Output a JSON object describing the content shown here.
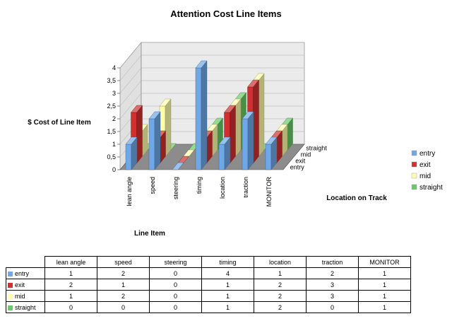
{
  "chart_data": {
    "type": "bar",
    "title": "Attention Cost Line Items",
    "xlabel": "Line Item",
    "ylabel": "$ Cost of Line Item",
    "zlabel": "Location on Track",
    "categories": [
      "lean angle",
      "speed",
      "steering",
      "timing",
      "location",
      "traction",
      "MONITOR"
    ],
    "y_ticks": [
      "0",
      "0,5",
      "1",
      "1,5",
      "2",
      "2,5",
      "3",
      "3,5",
      "4"
    ],
    "ylim": [
      0,
      4
    ],
    "legend_position": "right",
    "series": [
      {
        "name": "entry",
        "color": "#6FA8E8",
        "values": [
          1,
          2,
          0,
          4,
          1,
          2,
          1
        ]
      },
      {
        "name": "exit",
        "color": "#D03030",
        "values": [
          2,
          1,
          0,
          1,
          2,
          3,
          1
        ]
      },
      {
        "name": "mid",
        "color": "#FFFFAA",
        "values": [
          1,
          2,
          0,
          1,
          2,
          3,
          1
        ]
      },
      {
        "name": "straight",
        "color": "#66CC66",
        "values": [
          0,
          0,
          0,
          1,
          2,
          0,
          1
        ]
      }
    ]
  }
}
